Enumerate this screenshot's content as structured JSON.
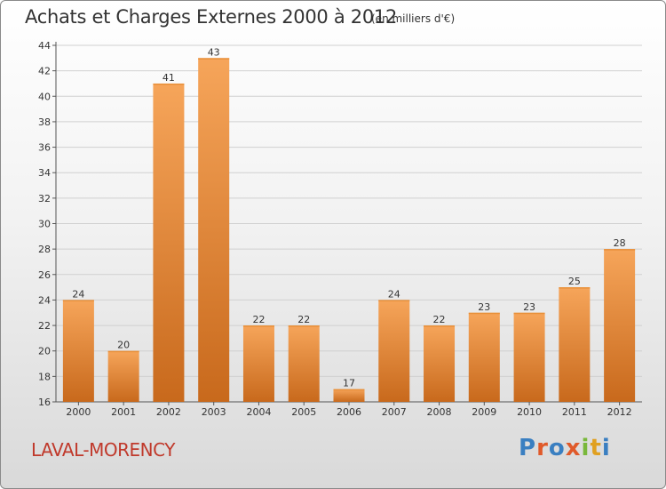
{
  "header": {
    "title": "Achats et Charges Externes 2000 à 2012",
    "unit_note": "(en milliers d'€)"
  },
  "footer": {
    "commune": "LAVAL-MORENCY",
    "logo_text": "Proxiti"
  },
  "colors": {
    "bar_light": "#f6a55a",
    "bar_dark": "#c8691c",
    "commune": "#c0392b",
    "logo_letters": [
      "#3a7fc1",
      "#e05a2a",
      "#3a7fc1",
      "#e05a2a",
      "#79b83b",
      "#e0a020",
      "#3a7fc1"
    ]
  },
  "chart_data": {
    "type": "bar",
    "title": "Achats et Charges Externes 2000 à 2012",
    "subtitle": "(en milliers d'€)",
    "categories": [
      "2000",
      "2001",
      "2002",
      "2003",
      "2004",
      "2005",
      "2006",
      "2007",
      "2008",
      "2009",
      "2010",
      "2011",
      "2012"
    ],
    "values": [
      24,
      20,
      41,
      43,
      22,
      22,
      17,
      24,
      22,
      23,
      23,
      25,
      28
    ],
    "ylim": [
      16,
      44
    ],
    "yticks": [
      16,
      18,
      20,
      22,
      24,
      26,
      28,
      30,
      32,
      34,
      36,
      38,
      40,
      42,
      44
    ],
    "xlabel": "",
    "ylabel": "",
    "grid": true,
    "data_labels": true
  }
}
